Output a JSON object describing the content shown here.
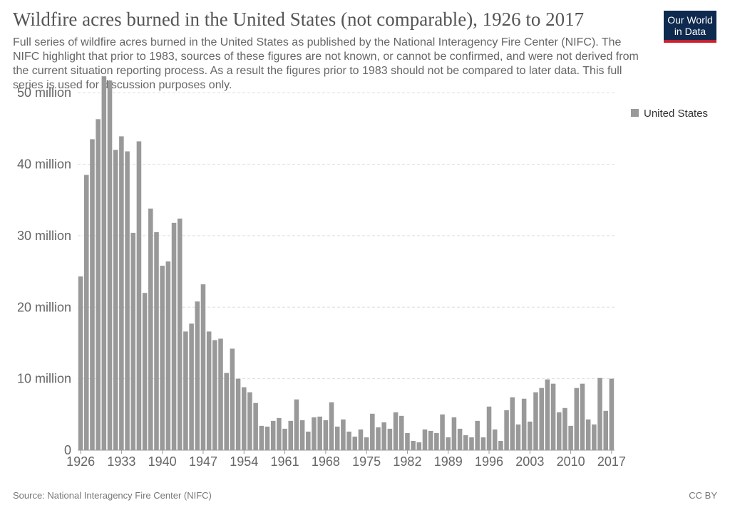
{
  "header": {
    "title": "Wildfire acres burned in the United States (not comparable), 1926 to 2017",
    "subtitle": "Full series of wildfire acres burned in the United States as published by the National Interagency Fire Center (NIFC). The NIFC highlight that prior to 1983, sources of these figures are not known, or cannot be confirmed, and were not derived from the current situation reporting process. As a result the figures prior to 1983 should not be compared to later data. This full series is used for discussion purposes only.",
    "logo_line1": "Our World",
    "logo_line2": "in Data"
  },
  "footer": {
    "source": "Source: National Interagency Fire Center (NIFC)",
    "license": "CC BY"
  },
  "chart_data": {
    "type": "bar",
    "title": "Wildfire acres burned in the United States (not comparable), 1926 to 2017",
    "series": [
      {
        "name": "United States",
        "color": "#999999",
        "x": [
          1926,
          1927,
          1928,
          1929,
          1930,
          1931,
          1932,
          1933,
          1934,
          1935,
          1936,
          1937,
          1938,
          1939,
          1940,
          1941,
          1942,
          1943,
          1944,
          1945,
          1946,
          1947,
          1948,
          1949,
          1950,
          1951,
          1952,
          1953,
          1954,
          1955,
          1956,
          1957,
          1958,
          1959,
          1960,
          1961,
          1962,
          1963,
          1964,
          1965,
          1966,
          1967,
          1968,
          1969,
          1970,
          1971,
          1972,
          1973,
          1974,
          1975,
          1976,
          1977,
          1978,
          1979,
          1980,
          1981,
          1982,
          1983,
          1984,
          1985,
          1986,
          1987,
          1988,
          1989,
          1990,
          1991,
          1992,
          1993,
          1994,
          1995,
          1996,
          1997,
          1998,
          1999,
          2000,
          2001,
          2002,
          2003,
          2004,
          2005,
          2006,
          2007,
          2008,
          2009,
          2010,
          2011,
          2012,
          2013,
          2014,
          2015,
          2016,
          2017
        ],
        "values": [
          24.3,
          38.5,
          43.5,
          46.3,
          52.3,
          51.7,
          42.0,
          43.9,
          41.8,
          30.4,
          43.2,
          22.0,
          33.8,
          30.5,
          25.8,
          26.4,
          31.8,
          32.4,
          16.6,
          17.7,
          20.8,
          23.2,
          16.6,
          15.4,
          15.6,
          10.8,
          14.2,
          10.0,
          8.8,
          8.1,
          6.6,
          3.4,
          3.3,
          4.1,
          4.5,
          3.0,
          4.1,
          7.1,
          4.2,
          2.6,
          4.6,
          4.7,
          4.2,
          6.7,
          3.3,
          4.3,
          2.6,
          1.9,
          2.9,
          1.8,
          5.1,
          3.2,
          3.9,
          3.0,
          5.3,
          4.8,
          2.4,
          1.3,
          1.1,
          2.9,
          2.7,
          2.4,
          5.0,
          1.8,
          4.6,
          3.0,
          2.1,
          1.8,
          4.1,
          1.8,
          6.1,
          2.9,
          1.3,
          5.6,
          7.4,
          3.6,
          7.2,
          4.0,
          8.1,
          8.7,
          9.9,
          9.3,
          5.3,
          5.9,
          3.4,
          8.7,
          9.3,
          4.3,
          3.6,
          10.1,
          5.5,
          10.0
        ]
      }
    ],
    "unit": "million",
    "ylim": [
      0,
      55
    ],
    "y_ticks": [
      {
        "value": 0,
        "label": "0"
      },
      {
        "value": 10,
        "label": "10 million"
      },
      {
        "value": 20,
        "label": "20 million"
      },
      {
        "value": 30,
        "label": "30 million"
      },
      {
        "value": 40,
        "label": "40 million"
      },
      {
        "value": 50,
        "label": "50 million"
      }
    ],
    "x_ticks": [
      "1926",
      "1933",
      "1940",
      "1947",
      "1954",
      "1961",
      "1968",
      "1975",
      "1982",
      "1989",
      "1996",
      "2003",
      "2010",
      "2017"
    ],
    "grid": true,
    "legend_placement": "top-right"
  }
}
